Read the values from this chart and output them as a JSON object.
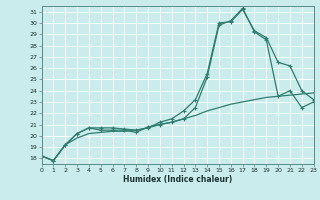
{
  "xlabel": "Humidex (Indice chaleur)",
  "background_color": "#cbecec",
  "line_color": "#2e7d6e",
  "grid_color": "#ffffff",
  "xlim": [
    0,
    23
  ],
  "ylim": [
    17.5,
    31.5
  ],
  "xticks": [
    0,
    1,
    2,
    3,
    4,
    5,
    6,
    7,
    8,
    9,
    10,
    11,
    12,
    13,
    14,
    15,
    16,
    17,
    18,
    19,
    20,
    21,
    22,
    23
  ],
  "yticks": [
    18,
    19,
    20,
    21,
    22,
    23,
    24,
    25,
    26,
    27,
    28,
    29,
    30,
    31
  ],
  "s1_x": [
    0,
    1,
    2,
    3,
    4,
    5,
    6,
    7,
    8,
    9,
    10,
    11,
    12,
    13,
    14,
    15,
    16,
    17,
    18,
    19,
    20,
    21,
    22,
    23
  ],
  "s1_y": [
    18.2,
    17.8,
    19.2,
    20.2,
    20.7,
    20.7,
    20.7,
    20.6,
    20.5,
    20.7,
    21.2,
    21.5,
    22.2,
    23.2,
    25.5,
    30.0,
    30.1,
    31.2,
    29.3,
    28.7,
    26.5,
    26.2,
    24.0,
    23.2
  ],
  "s2_x": [
    0,
    1,
    2,
    3,
    4,
    5,
    6,
    7,
    8,
    9,
    10,
    11,
    12,
    13,
    14,
    15,
    16,
    17,
    18,
    19,
    20,
    21,
    22,
    23
  ],
  "s2_y": [
    18.2,
    17.8,
    19.2,
    20.2,
    20.7,
    20.5,
    20.5,
    20.5,
    20.3,
    20.8,
    21.0,
    21.2,
    21.5,
    22.5,
    25.2,
    29.8,
    30.2,
    31.3,
    29.2,
    28.5,
    23.5,
    24.0,
    22.5,
    23.0
  ],
  "s3_x": [
    0,
    1,
    2,
    3,
    4,
    5,
    6,
    7,
    8,
    9,
    10,
    11,
    12,
    13,
    14,
    15,
    16,
    17,
    18,
    19,
    20,
    21,
    22,
    23
  ],
  "s3_y": [
    18.2,
    17.8,
    19.2,
    19.8,
    20.2,
    20.3,
    20.4,
    20.4,
    20.5,
    20.7,
    21.0,
    21.2,
    21.5,
    21.8,
    22.2,
    22.5,
    22.8,
    23.0,
    23.2,
    23.4,
    23.5,
    23.6,
    23.7,
    23.8
  ]
}
